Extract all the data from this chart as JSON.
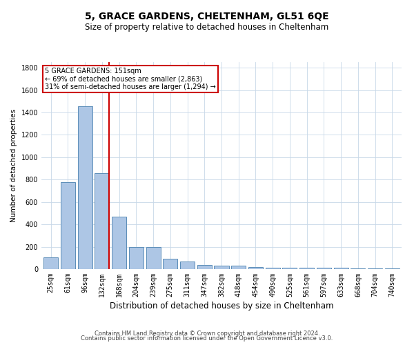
{
  "title": "5, GRACE GARDENS, CHELTENHAM, GL51 6QE",
  "subtitle": "Size of property relative to detached houses in Cheltenham",
  "xlabel": "Distribution of detached houses by size in Cheltenham",
  "ylabel": "Number of detached properties",
  "categories": [
    "25sqm",
    "61sqm",
    "96sqm",
    "132sqm",
    "168sqm",
    "204sqm",
    "239sqm",
    "275sqm",
    "311sqm",
    "347sqm",
    "382sqm",
    "418sqm",
    "454sqm",
    "490sqm",
    "525sqm",
    "561sqm",
    "597sqm",
    "633sqm",
    "668sqm",
    "704sqm",
    "740sqm"
  ],
  "values": [
    105,
    775,
    1455,
    860,
    470,
    195,
    195,
    95,
    65,
    40,
    30,
    30,
    20,
    10,
    10,
    10,
    10,
    10,
    5,
    5,
    5
  ],
  "bar_color": "#adc6e5",
  "bar_edge_color": "#5b8db8",
  "vline_color": "#cc0000",
  "annotation_text": "5 GRACE GARDENS: 151sqm\n← 69% of detached houses are smaller (2,863)\n31% of semi-detached houses are larger (1,294) →",
  "annotation_box_color": "#ffffff",
  "annotation_box_edge_color": "#cc0000",
  "ylim": [
    0,
    1850
  ],
  "yticks": [
    0,
    200,
    400,
    600,
    800,
    1000,
    1200,
    1400,
    1600,
    1800
  ],
  "footer_line1": "Contains HM Land Registry data © Crown copyright and database right 2024.",
  "footer_line2": "Contains public sector information licensed under the Open Government Licence v3.0.",
  "background_color": "#ffffff",
  "grid_color": "#c8d8e8",
  "title_fontsize": 10,
  "subtitle_fontsize": 8.5,
  "ylabel_fontsize": 7.5,
  "xlabel_fontsize": 8.5,
  "tick_fontsize": 7,
  "footer_fontsize": 6
}
